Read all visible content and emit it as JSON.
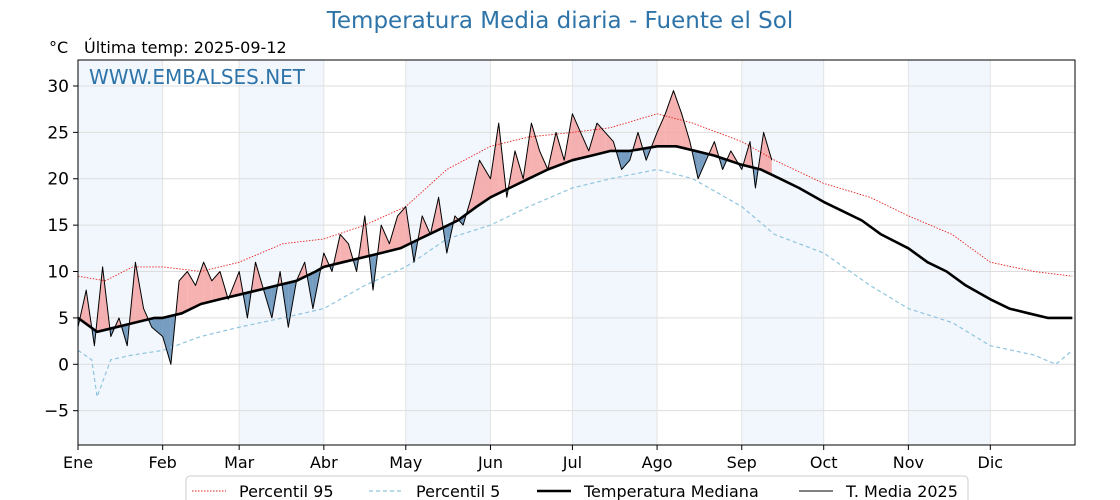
{
  "chart_data": {
    "type": "line",
    "title": "Temperatura Media diaria - Fuente el Sol",
    "unit_label": "°C",
    "last_temp_label": "Última temp: 2025-09-12",
    "watermark": "WWW.EMBALSES.NET",
    "x_month_labels": [
      "Ene",
      "Feb",
      "Mar",
      "Abr",
      "May",
      "Jun",
      "Jul",
      "Ago",
      "Sep",
      "Oct",
      "Nov",
      "Dic"
    ],
    "x_day_range": [
      0,
      365
    ],
    "y_ticks": [
      -5,
      0,
      5,
      10,
      15,
      20,
      25,
      30
    ],
    "y_tick_labels": [
      "−5",
      "0",
      "5",
      "10",
      "15",
      "20",
      "25",
      "30"
    ],
    "ylim": [
      -8.7,
      32.8
    ],
    "grid": true,
    "legend_position": "bottom-center",
    "colors": {
      "p95": "#e8221c",
      "p5": "#8fc4de",
      "median": "#000000",
      "current": "#000000",
      "above_fill": "#f4a3a3",
      "below_fill": "#5f8cb6",
      "alt_month_band": "#e9f2fb",
      "title": "#2e74a8"
    },
    "series": [
      {
        "name": "Percentil 95",
        "style": "dotted-red",
        "x_days": [
          0,
          10,
          20,
          31,
          45,
          59,
          75,
          90,
          105,
          120,
          135,
          151,
          165,
          181,
          195,
          212,
          225,
          243,
          255,
          273,
          290,
          304,
          320,
          334,
          350,
          364
        ],
        "values": [
          9.5,
          9.0,
          10.5,
          10.5,
          10.0,
          11.0,
          13.0,
          13.5,
          15.0,
          17.0,
          21.0,
          23.5,
          24.5,
          25.0,
          25.5,
          27.0,
          26.0,
          24.0,
          22.0,
          19.5,
          18.0,
          16.0,
          14.0,
          11.0,
          10.0,
          9.5
        ]
      },
      {
        "name": "Percentil 5",
        "style": "dashed-lightblue",
        "x_days": [
          0,
          5,
          7,
          12,
          20,
          31,
          45,
          59,
          75,
          90,
          105,
          120,
          135,
          151,
          165,
          181,
          195,
          212,
          225,
          243,
          255,
          273,
          290,
          304,
          320,
          334,
          350,
          358,
          364
        ],
        "values": [
          1.5,
          0.5,
          -3.5,
          0.5,
          1.0,
          1.5,
          3.0,
          4.0,
          5.0,
          6.0,
          8.5,
          10.5,
          13.5,
          15.0,
          17.0,
          19.0,
          20.0,
          21.0,
          20.0,
          17.0,
          14.0,
          12.0,
          8.5,
          6.0,
          4.5,
          2.0,
          1.0,
          0.0,
          1.5
        ]
      },
      {
        "name": "Temperatura Mediana",
        "style": "thick-black",
        "x_days": [
          0,
          7,
          14,
          21,
          28,
          31,
          38,
          45,
          52,
          59,
          66,
          73,
          80,
          87,
          90,
          97,
          104,
          111,
          118,
          125,
          132,
          139,
          146,
          151,
          158,
          165,
          172,
          181,
          188,
          195,
          202,
          212,
          219,
          226,
          233,
          243,
          250,
          257,
          264,
          273,
          280,
          287,
          294,
          304,
          311,
          318,
          325,
          334,
          341,
          348,
          355,
          364
        ],
        "values": [
          5.0,
          3.5,
          4.0,
          4.5,
          5.0,
          5.0,
          5.5,
          6.5,
          7.0,
          7.5,
          8.0,
          8.5,
          9.0,
          10.0,
          10.5,
          11.0,
          11.5,
          12.0,
          12.5,
          13.5,
          14.5,
          15.5,
          17.0,
          18.0,
          19.0,
          20.0,
          21.0,
          22.0,
          22.5,
          23.0,
          23.0,
          23.5,
          23.5,
          23.0,
          22.5,
          21.5,
          21.0,
          20.0,
          19.0,
          17.5,
          16.5,
          15.5,
          14.0,
          12.5,
          11.0,
          10.0,
          8.5,
          7.0,
          6.0,
          5.5,
          5.0,
          5.0
        ]
      },
      {
        "name": "T. Media 2025",
        "style": "thin-black",
        "x_days": [
          0,
          3,
          6,
          9,
          12,
          15,
          18,
          21,
          24,
          27,
          31,
          34,
          37,
          40,
          43,
          46,
          49,
          52,
          55,
          59,
          62,
          65,
          68,
          71,
          74,
          77,
          80,
          83,
          86,
          90,
          93,
          96,
          99,
          102,
          105,
          108,
          111,
          114,
          117,
          120,
          123,
          126,
          129,
          132,
          135,
          138,
          141,
          144,
          147,
          151,
          154,
          157,
          160,
          163,
          166,
          169,
          172,
          175,
          178,
          181,
          184,
          187,
          190,
          193,
          196,
          199,
          202,
          205,
          208,
          212,
          215,
          218,
          221,
          224,
          227,
          230,
          233,
          236,
          239,
          243,
          246,
          248,
          251,
          254
        ],
        "values": [
          4.0,
          8.0,
          2.0,
          10.5,
          3.0,
          5.0,
          2.0,
          11.0,
          6.0,
          4.0,
          3.0,
          0.0,
          9.0,
          10.0,
          8.5,
          11.0,
          9.0,
          10.0,
          7.0,
          10.0,
          5.0,
          11.0,
          8.0,
          5.0,
          10.0,
          4.0,
          9.0,
          11.0,
          6.0,
          12.0,
          10.0,
          14.0,
          13.0,
          10.0,
          16.0,
          8.0,
          15.0,
          13.0,
          16.0,
          17.0,
          11.0,
          16.0,
          14.0,
          18.0,
          12.0,
          16.0,
          15.0,
          18.0,
          22.0,
          20.0,
          26.0,
          18.0,
          23.0,
          20.0,
          26.0,
          23.0,
          21.0,
          25.0,
          22.0,
          27.0,
          25.0,
          23.0,
          26.0,
          25.0,
          24.0,
          21.0,
          22.0,
          25.0,
          22.0,
          25.0,
          27.0,
          29.5,
          27.0,
          24.0,
          20.0,
          22.0,
          24.0,
          21.0,
          23.0,
          21.0,
          24.0,
          19.0,
          25.0,
          22.0
        ]
      }
    ]
  },
  "legend": {
    "items": [
      {
        "label": "Percentil 95"
      },
      {
        "label": "Percentil 5"
      },
      {
        "label": "Temperatura Mediana"
      },
      {
        "label": "T. Media 2025"
      }
    ]
  }
}
